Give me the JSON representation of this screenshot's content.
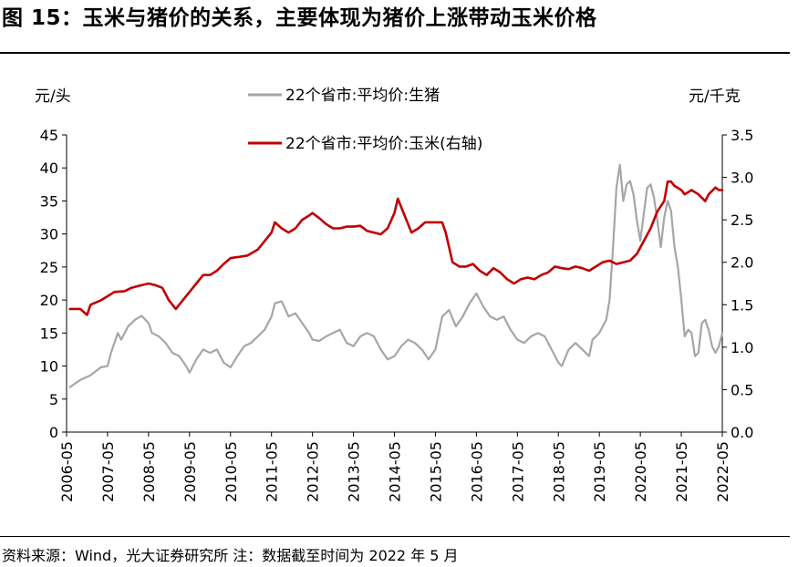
{
  "title": "图 15：玉米与猪价的关系，主要体现为猪价上涨带动玉米价格",
  "source_note": "资料来源：Wind，光大证券研究所  注：数据截至时间为 2022 年 5 月",
  "colors": {
    "hog": "#a6a6a6",
    "corn": "#c00000",
    "axis": "#000000"
  },
  "chart_data": {
    "type": "line",
    "left_unit": "元/头",
    "right_unit": "元/千克",
    "legend_position": "top-center",
    "grid": false,
    "ylim_left": [
      0,
      45
    ],
    "ylim_right": [
      0,
      3.5
    ],
    "yticks_left": [
      "0",
      "5",
      "10",
      "15",
      "20",
      "25",
      "30",
      "35",
      "40",
      "45"
    ],
    "yticks_right": [
      "0.0",
      "0.5",
      "1.0",
      "1.5",
      "2.0",
      "2.5",
      "3.0",
      "3.5"
    ],
    "xticks": [
      "2006-05",
      "2007-05",
      "2008-05",
      "2009-05",
      "2010-05",
      "2011-05",
      "2012-05",
      "2013-05",
      "2014-05",
      "2015-05",
      "2016-05",
      "2017-05",
      "2018-05",
      "2019-05",
      "2020-05",
      "2021-05",
      "2022-05"
    ],
    "series": [
      {
        "name": "22个省市:平均价:生猪",
        "axis": "left",
        "color": "#a6a6a6",
        "points": [
          [
            "2006-06",
            6.8
          ],
          [
            "2006-09",
            7.9
          ],
          [
            "2006-12",
            8.6
          ],
          [
            "2007-03",
            9.8
          ],
          [
            "2007-05",
            10.0
          ],
          [
            "2007-06",
            12.0
          ],
          [
            "2007-08",
            15.0
          ],
          [
            "2007-09",
            14.0
          ],
          [
            "2007-11",
            16.0
          ],
          [
            "2008-01",
            17.0
          ],
          [
            "2008-03",
            17.6
          ],
          [
            "2008-05",
            16.5
          ],
          [
            "2008-06",
            15.0
          ],
          [
            "2008-08",
            14.5
          ],
          [
            "2008-10",
            13.5
          ],
          [
            "2008-12",
            12.0
          ],
          [
            "2009-02",
            11.5
          ],
          [
            "2009-04",
            10.0
          ],
          [
            "2009-05",
            9.0
          ],
          [
            "2009-07",
            11.0
          ],
          [
            "2009-09",
            12.5
          ],
          [
            "2009-11",
            12.0
          ],
          [
            "2010-01",
            12.5
          ],
          [
            "2010-03",
            10.5
          ],
          [
            "2010-05",
            9.8
          ],
          [
            "2010-07",
            11.5
          ],
          [
            "2010-09",
            13.0
          ],
          [
            "2010-11",
            13.5
          ],
          [
            "2011-01",
            14.5
          ],
          [
            "2011-03",
            15.5
          ],
          [
            "2011-05",
            17.5
          ],
          [
            "2011-06",
            19.5
          ],
          [
            "2011-08",
            19.8
          ],
          [
            "2011-10",
            17.5
          ],
          [
            "2011-12",
            18.0
          ],
          [
            "2012-02",
            16.5
          ],
          [
            "2012-04",
            15.0
          ],
          [
            "2012-05",
            14.0
          ],
          [
            "2012-07",
            13.8
          ],
          [
            "2012-09",
            14.5
          ],
          [
            "2012-11",
            15.0
          ],
          [
            "2013-01",
            15.5
          ],
          [
            "2013-03",
            13.5
          ],
          [
            "2013-05",
            13.0
          ],
          [
            "2013-07",
            14.5
          ],
          [
            "2013-09",
            15.0
          ],
          [
            "2013-11",
            14.5
          ],
          [
            "2014-01",
            12.5
          ],
          [
            "2014-03",
            11.0
          ],
          [
            "2014-05",
            11.5
          ],
          [
            "2014-07",
            13.0
          ],
          [
            "2014-09",
            14.0
          ],
          [
            "2014-11",
            13.5
          ],
          [
            "2015-01",
            12.5
          ],
          [
            "2015-03",
            11.0
          ],
          [
            "2015-05",
            12.5
          ],
          [
            "2015-07",
            17.5
          ],
          [
            "2015-09",
            18.5
          ],
          [
            "2015-11",
            16.0
          ],
          [
            "2016-01",
            17.5
          ],
          [
            "2016-03",
            19.5
          ],
          [
            "2016-05",
            21.0
          ],
          [
            "2016-07",
            19.0
          ],
          [
            "2016-09",
            17.5
          ],
          [
            "2016-11",
            17.0
          ],
          [
            "2017-01",
            17.5
          ],
          [
            "2017-03",
            15.5
          ],
          [
            "2017-05",
            14.0
          ],
          [
            "2017-07",
            13.5
          ],
          [
            "2017-09",
            14.5
          ],
          [
            "2017-11",
            15.0
          ],
          [
            "2018-01",
            14.5
          ],
          [
            "2018-03",
            12.5
          ],
          [
            "2018-05",
            10.5
          ],
          [
            "2018-06",
            10.0
          ],
          [
            "2018-08",
            12.5
          ],
          [
            "2018-10",
            13.5
          ],
          [
            "2018-12",
            12.5
          ],
          [
            "2019-02",
            11.5
          ],
          [
            "2019-03",
            14.0
          ],
          [
            "2019-05",
            15.0
          ],
          [
            "2019-07",
            17.0
          ],
          [
            "2019-08",
            20.0
          ],
          [
            "2019-09",
            28.0
          ],
          [
            "2019-10",
            37.0
          ],
          [
            "2019-11",
            40.5
          ],
          [
            "2019-12",
            35.0
          ],
          [
            "2020-01",
            37.5
          ],
          [
            "2020-02",
            38.0
          ],
          [
            "2020-03",
            36.0
          ],
          [
            "2020-04",
            32.0
          ],
          [
            "2020-05",
            29.0
          ],
          [
            "2020-06",
            33.0
          ],
          [
            "2020-07",
            37.0
          ],
          [
            "2020-08",
            37.5
          ],
          [
            "2020-09",
            35.5
          ],
          [
            "2020-10",
            32.0
          ],
          [
            "2020-11",
            28.0
          ],
          [
            "2020-12",
            32.5
          ],
          [
            "2021-01",
            35.0
          ],
          [
            "2021-02",
            33.5
          ],
          [
            "2021-03",
            28.0
          ],
          [
            "2021-04",
            25.0
          ],
          [
            "2021-05",
            20.0
          ],
          [
            "2021-06",
            14.5
          ],
          [
            "2021-07",
            15.5
          ],
          [
            "2021-08",
            15.0
          ],
          [
            "2021-09",
            11.5
          ],
          [
            "2021-10",
            12.0
          ],
          [
            "2021-11",
            16.5
          ],
          [
            "2021-12",
            17.0
          ],
          [
            "2022-01",
            15.5
          ],
          [
            "2022-02",
            13.0
          ],
          [
            "2022-03",
            12.0
          ],
          [
            "2022-04",
            13.0
          ],
          [
            "2022-05",
            15.0
          ]
        ]
      },
      {
        "name": "22个省市:平均价:玉米(右轴)",
        "axis": "right",
        "color": "#c00000",
        "points": [
          [
            "2006-06",
            1.45
          ],
          [
            "2006-09",
            1.45
          ],
          [
            "2006-11",
            1.38
          ],
          [
            "2006-12",
            1.5
          ],
          [
            "2007-03",
            1.55
          ],
          [
            "2007-05",
            1.6
          ],
          [
            "2007-07",
            1.65
          ],
          [
            "2007-10",
            1.66
          ],
          [
            "2007-12",
            1.7
          ],
          [
            "2008-02",
            1.72
          ],
          [
            "2008-05",
            1.75
          ],
          [
            "2008-07",
            1.73
          ],
          [
            "2008-09",
            1.7
          ],
          [
            "2008-11",
            1.55
          ],
          [
            "2009-01",
            1.45
          ],
          [
            "2009-03",
            1.55
          ],
          [
            "2009-05",
            1.65
          ],
          [
            "2009-07",
            1.75
          ],
          [
            "2009-09",
            1.85
          ],
          [
            "2009-11",
            1.85
          ],
          [
            "2010-01",
            1.9
          ],
          [
            "2010-03",
            1.98
          ],
          [
            "2010-05",
            2.05
          ],
          [
            "2010-07",
            2.06
          ],
          [
            "2010-10",
            2.08
          ],
          [
            "2011-01",
            2.15
          ],
          [
            "2011-03",
            2.25
          ],
          [
            "2011-05",
            2.35
          ],
          [
            "2011-06",
            2.47
          ],
          [
            "2011-08",
            2.4
          ],
          [
            "2011-10",
            2.35
          ],
          [
            "2011-12",
            2.4
          ],
          [
            "2012-02",
            2.5
          ],
          [
            "2012-04",
            2.55
          ],
          [
            "2012-05",
            2.58
          ],
          [
            "2012-07",
            2.52
          ],
          [
            "2012-09",
            2.45
          ],
          [
            "2012-11",
            2.4
          ],
          [
            "2013-01",
            2.4
          ],
          [
            "2013-03",
            2.42
          ],
          [
            "2013-05",
            2.42
          ],
          [
            "2013-07",
            2.43
          ],
          [
            "2013-09",
            2.37
          ],
          [
            "2013-11",
            2.35
          ],
          [
            "2014-01",
            2.33
          ],
          [
            "2014-03",
            2.4
          ],
          [
            "2014-05",
            2.58
          ],
          [
            "2014-06",
            2.75
          ],
          [
            "2014-08",
            2.55
          ],
          [
            "2014-10",
            2.35
          ],
          [
            "2014-12",
            2.4
          ],
          [
            "2015-02",
            2.47
          ],
          [
            "2015-05",
            2.47
          ],
          [
            "2015-07",
            2.47
          ],
          [
            "2015-08",
            2.35
          ],
          [
            "2015-10",
            2.0
          ],
          [
            "2015-12",
            1.95
          ],
          [
            "2016-02",
            1.95
          ],
          [
            "2016-04",
            1.98
          ],
          [
            "2016-06",
            1.9
          ],
          [
            "2016-08",
            1.85
          ],
          [
            "2016-10",
            1.93
          ],
          [
            "2016-12",
            1.88
          ],
          [
            "2017-02",
            1.8
          ],
          [
            "2017-04",
            1.75
          ],
          [
            "2017-06",
            1.8
          ],
          [
            "2017-08",
            1.82
          ],
          [
            "2017-10",
            1.8
          ],
          [
            "2017-12",
            1.85
          ],
          [
            "2018-02",
            1.88
          ],
          [
            "2018-04",
            1.95
          ],
          [
            "2018-06",
            1.93
          ],
          [
            "2018-08",
            1.92
          ],
          [
            "2018-10",
            1.95
          ],
          [
            "2018-12",
            1.93
          ],
          [
            "2019-02",
            1.9
          ],
          [
            "2019-04",
            1.95
          ],
          [
            "2019-06",
            2.0
          ],
          [
            "2019-08",
            2.02
          ],
          [
            "2019-10",
            1.98
          ],
          [
            "2019-12",
            2.0
          ],
          [
            "2020-02",
            2.02
          ],
          [
            "2020-04",
            2.1
          ],
          [
            "2020-06",
            2.25
          ],
          [
            "2020-08",
            2.4
          ],
          [
            "2020-10",
            2.6
          ],
          [
            "2020-12",
            2.72
          ],
          [
            "2021-01",
            2.95
          ],
          [
            "2021-02",
            2.95
          ],
          [
            "2021-03",
            2.9
          ],
          [
            "2021-05",
            2.85
          ],
          [
            "2021-06",
            2.8
          ],
          [
            "2021-08",
            2.85
          ],
          [
            "2021-10",
            2.8
          ],
          [
            "2021-12",
            2.72
          ],
          [
            "2022-01",
            2.8
          ],
          [
            "2022-03",
            2.88
          ],
          [
            "2022-04",
            2.85
          ],
          [
            "2022-05",
            2.85
          ]
        ]
      }
    ]
  }
}
